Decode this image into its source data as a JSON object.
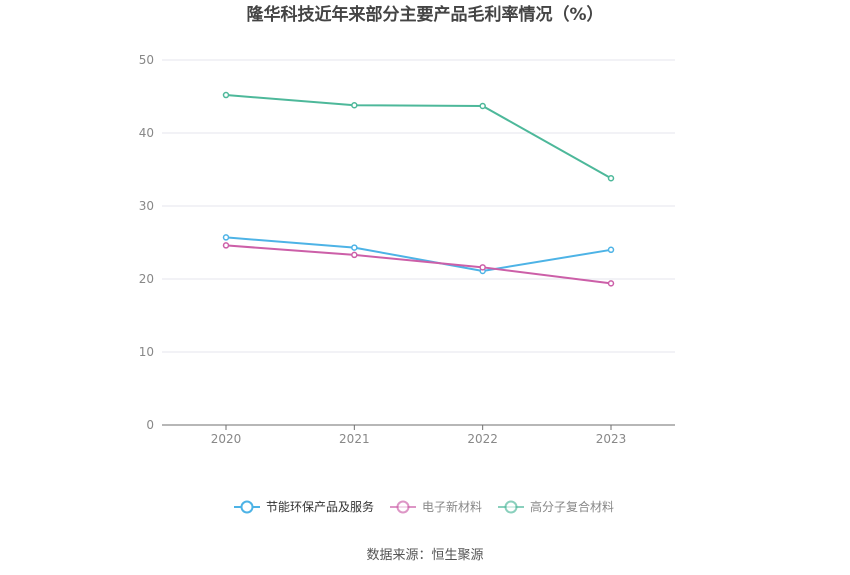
{
  "chart_data": {
    "type": "line",
    "title": "隆华科技近年来部分主要产品毛利率情况（%）",
    "xlabel": "",
    "ylabel": "",
    "categories": [
      "2020",
      "2021",
      "2022",
      "2023"
    ],
    "ylim": [
      0,
      50
    ],
    "yticks": [
      0,
      10,
      20,
      30,
      40,
      50
    ],
    "grid": true,
    "legend_position": "bottom",
    "series": [
      {
        "name": "节能环保产品及服务",
        "color": "#4db3e6",
        "values": [
          25.7,
          24.3,
          21.1,
          24.0
        ]
      },
      {
        "name": "电子新材料",
        "color": "#cc5fa8",
        "values": [
          24.6,
          23.3,
          21.6,
          19.4
        ]
      },
      {
        "name": "高分子复合材料",
        "color": "#4db89a",
        "values": [
          45.2,
          43.8,
          43.7,
          33.8
        ]
      }
    ],
    "source": "数据来源：恒生聚源"
  }
}
